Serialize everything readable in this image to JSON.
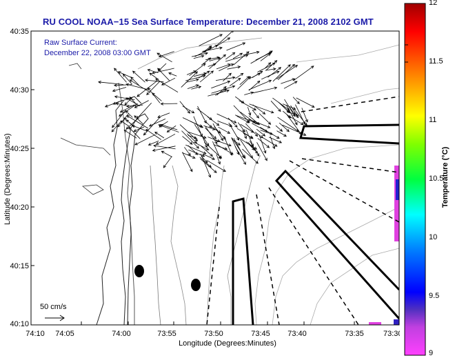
{
  "title": "RU COOL  NOAA−15  Sea Surface Temperature:  December 21, 2008 2102 GMT",
  "current_label": "Raw Surface Current:",
  "current_time": "December 22, 2008 03:00 GMT",
  "y_axis_label": "Latitude (Degrees:Minutes)",
  "x_axis_label": "Longitude (Degrees:Minutes)",
  "y_ticks": [
    "40:35",
    "40:30",
    "40:25",
    "40:20",
    "40:15",
    "40:10"
  ],
  "x_ticks": [
    "74:10",
    "74:05",
    "74:00",
    "73:55",
    "73:50",
    "73:45",
    "73:40",
    "73:35",
    "73:30"
  ],
  "colorbar_label": "Temperature (°C)",
  "colorbar_ticks": [
    "12",
    "11.5",
    "11",
    "10.5",
    "10",
    "9.5",
    "9"
  ],
  "scale_label": "50 cm/s",
  "colors": {
    "title": "#1a1aa8"
  }
}
